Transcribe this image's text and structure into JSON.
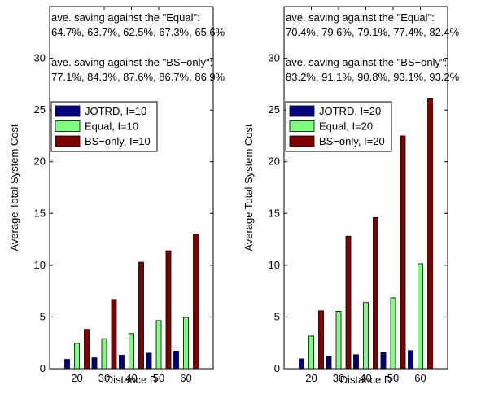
{
  "chart_data": [
    {
      "type": "bar",
      "categories": [
        "20",
        "30",
        "40",
        "50",
        "60"
      ],
      "xlabel": "Distance D",
      "ylabel": "Average Total System Cost",
      "ylim": [
        0,
        35
      ],
      "yticks": [
        0,
        5,
        10,
        15,
        20,
        25,
        30
      ],
      "grid": false,
      "legend": "upper-left",
      "series": [
        {
          "name": "JOTRD, I=10",
          "color": "#00007f",
          "values": [
            0.9,
            1.05,
            1.3,
            1.5,
            1.7
          ]
        },
        {
          "name": "Equal, I=10",
          "color": "#7fff7f",
          "values": [
            2.45,
            2.9,
            3.4,
            4.65,
            4.95
          ]
        },
        {
          "name": "BS−only, I=10",
          "color": "#7f0000",
          "values": [
            3.8,
            6.7,
            10.3,
            11.4,
            13.0
          ]
        }
      ],
      "annotations": [
        "ave. saving against the \"Equal\":",
        "64.7%, 63.7%, 62.5%, 67.3%, 65.6%",
        "ave. saving against the \"BS−only\":",
        "77.1%, 84.3%, 87.6%, 86.7%, 86.9%"
      ]
    },
    {
      "type": "bar",
      "categories": [
        "20",
        "30",
        "40",
        "50",
        "60"
      ],
      "xlabel": "Distance D",
      "ylabel": "Average Total System Cost",
      "ylim": [
        0,
        35
      ],
      "yticks": [
        0,
        5,
        10,
        15,
        20,
        25,
        30
      ],
      "grid": false,
      "legend": "upper-left",
      "series": [
        {
          "name": "JOTRD, I=20",
          "color": "#00007f",
          "values": [
            0.95,
            1.15,
            1.35,
            1.55,
            1.75
          ]
        },
        {
          "name": "Equal, I=20",
          "color": "#7fff7f",
          "values": [
            3.15,
            5.55,
            6.4,
            6.85,
            10.15
          ]
        },
        {
          "name": "BS−only, I=20",
          "color": "#7f0000",
          "values": [
            5.6,
            12.8,
            14.6,
            22.5,
            26.1
          ]
        }
      ],
      "annotations": [
        "ave. saving against the \"Equal\":",
        "70.4%, 79.6%, 79.1%, 77.4%, 82.4%",
        "ave. saving against the \"BS−only\":",
        "83.2%, 91.1%, 90.8%, 93.1%, 93.2%"
      ]
    }
  ]
}
